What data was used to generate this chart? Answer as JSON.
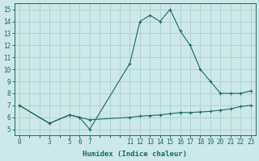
{
  "xlabel": "Humidex (Indice chaleur)",
  "ylabel": "",
  "bg_color": "#cce8e8",
  "grid_color": "#aacfcf",
  "line_color": "#1a6b5e",
  "x_labels": [
    "0",
    "",
    "",
    "3",
    "",
    "5",
    "6",
    "7",
    "",
    "",
    "",
    "11",
    "12",
    "13",
    "14",
    "15",
    "16",
    "17",
    "18",
    "19",
    "20",
    "21",
    "22",
    "23"
  ],
  "y_max": [
    7.0,
    null,
    null,
    5.5,
    null,
    6.2,
    6.0,
    5.0,
    null,
    null,
    null,
    10.5,
    14.0,
    14.5,
    14.0,
    15.0,
    13.2,
    12.0,
    10.0,
    9.0,
    8.0,
    8.0,
    8.0,
    8.2
  ],
  "y_min": [
    7.0,
    null,
    null,
    5.5,
    null,
    6.2,
    6.0,
    5.8,
    null,
    null,
    null,
    6.0,
    6.1,
    6.15,
    6.2,
    6.3,
    6.4,
    6.4,
    6.45,
    6.5,
    6.6,
    6.7,
    6.9,
    7.0
  ],
  "n_points": 24,
  "xlim": [
    -0.5,
    23.5
  ],
  "ylim": [
    4.5,
    15.5
  ],
  "ytick_positions": [
    5,
    6,
    7,
    8,
    9,
    10,
    11,
    12,
    13,
    14,
    15
  ],
  "tick_fontsize": 5.5,
  "xlabel_fontsize": 6.5
}
